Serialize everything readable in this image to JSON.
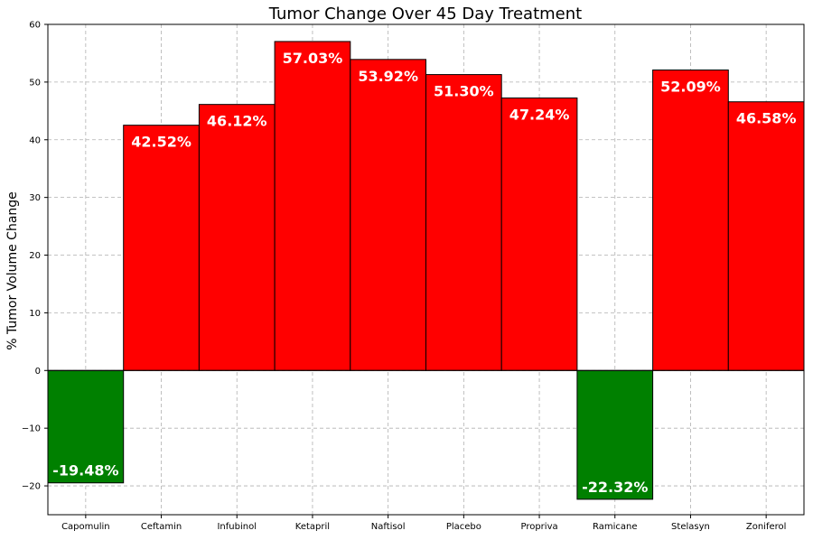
{
  "chart_data": {
    "type": "bar",
    "title": "Tumor Change Over 45 Day Treatment",
    "xlabel": "",
    "ylabel": "% Tumor Volume Change",
    "categories": [
      "Capomulin",
      "Ceftamin",
      "Infubinol",
      "Ketapril",
      "Naftisol",
      "Placebo",
      "Propriva",
      "Ramicane",
      "Stelasyn",
      "Zoniferol"
    ],
    "values": [
      -19.48,
      42.52,
      46.12,
      57.03,
      53.92,
      51.3,
      47.24,
      -22.32,
      52.09,
      46.58
    ],
    "data_labels": [
      "-19.48%",
      "42.52%",
      "46.12%",
      "57.03%",
      "53.92%",
      "51.30%",
      "47.24%",
      "-22.32%",
      "52.09%",
      "46.58%"
    ],
    "ylim": [
      -25,
      60
    ],
    "yticks": [
      -20,
      -10,
      0,
      10,
      20,
      30,
      40,
      50,
      60
    ],
    "ytick_labels": [
      "−20",
      "−10",
      "0",
      "10",
      "20",
      "30",
      "40",
      "50",
      "60"
    ],
    "grid": true,
    "colors": {
      "positive": "#ff0000",
      "negative": "#008000",
      "edge": "#000000",
      "grid": "#b0b0b0",
      "label_text": "#ffffff"
    }
  }
}
